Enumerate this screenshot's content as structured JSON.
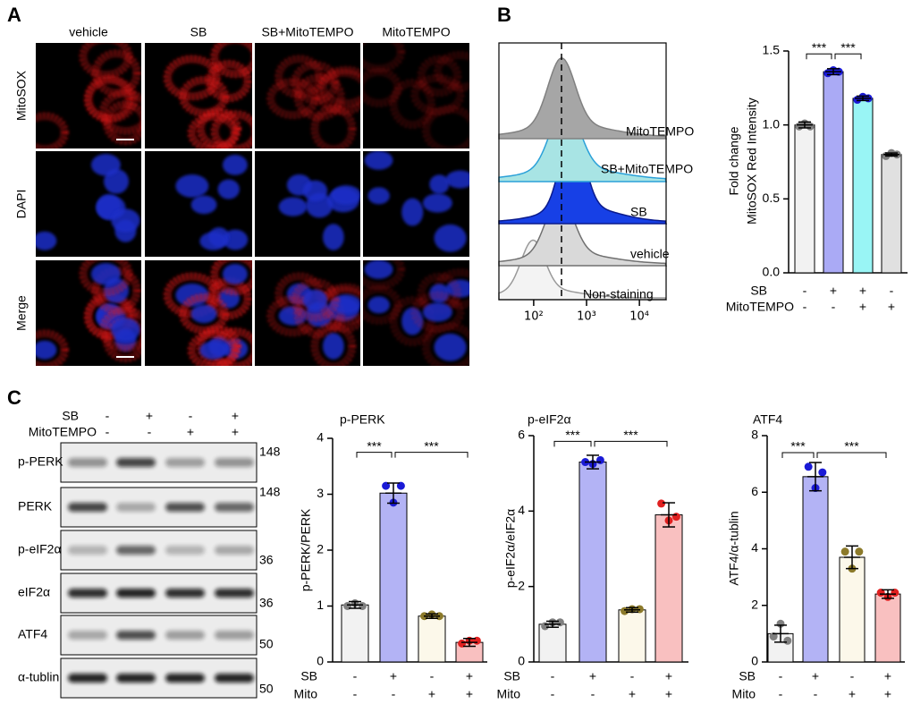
{
  "panel_labels": [
    "A",
    "B",
    "C"
  ],
  "panel_a": {
    "columns": [
      "vehicle",
      "SB",
      "SB+MitoTEMPO",
      "MitoTEMPO"
    ],
    "rows": [
      "MitoSOX",
      "DAPI",
      "Merge"
    ]
  },
  "panel_b_histogram": {
    "samples": [
      {
        "name": "MitoTEMPO",
        "fill": "#a6a6a6",
        "stroke": "#808080"
      },
      {
        "name": "SB+MitoTEMPO",
        "fill": "#a8e4e4",
        "stroke": "#2aa0d8"
      },
      {
        "name": "SB",
        "fill": "#1740e6",
        "stroke": "#0a1a8c"
      },
      {
        "name": "vehicle",
        "fill": "#d9d9d9",
        "stroke": "#707070"
      },
      {
        "name": "Non-staining",
        "fill": "#f3f3f3",
        "stroke": "#999999"
      }
    ],
    "log": true,
    "xlim": [
      22,
      32000
    ],
    "xticks": [
      {
        "value": 100,
        "label": "10²"
      },
      {
        "value": 1000,
        "label": "10³"
      },
      {
        "value": 10000,
        "label": "10⁴"
      }
    ]
  },
  "panel_c_blot": {
    "treatments": [
      {
        "name": "SB",
        "signs": [
          "-",
          "+",
          "-",
          "+"
        ]
      },
      {
        "name": "MitoTEMPO",
        "signs": [
          "-",
          "-",
          "+",
          "+"
        ]
      }
    ],
    "proteins": [
      {
        "name": "p-PERK",
        "marker": 148
      },
      {
        "name": "PERK",
        "marker": 148
      },
      {
        "name": "p-eIF2α",
        "marker": 36
      },
      {
        "name": "eIF2α",
        "marker": 36
      },
      {
        "name": "ATF4",
        "marker": 50
      },
      {
        "name": "α-tublin",
        "marker": 50
      }
    ]
  },
  "chart_data": [
    {
      "type": "bar",
      "ylabel": [
        "Fold change",
        "MitoSOX Red Intensity"
      ],
      "conditions": [
        {
          "name": "SB",
          "signs": [
            "-",
            "+",
            "+",
            "-"
          ]
        },
        {
          "name": "MitoTEMPO",
          "signs": [
            "-",
            "-",
            "+",
            "+"
          ]
        }
      ],
      "values": [
        1.0,
        1.36,
        1.18,
        0.8
      ],
      "errors": [
        0.02,
        0.02,
        0.015,
        0.01
      ],
      "points": [
        [
          0.99,
          1.01,
          0.99
        ],
        [
          1.35,
          1.37,
          1.36
        ],
        [
          1.17,
          1.19,
          1.18
        ],
        [
          0.79,
          0.81,
          0.8
        ]
      ],
      "colors": [
        "#f2f2f2",
        "#aaaaf5",
        "#99f5f5",
        "#e0e0e0"
      ],
      "point_colors": [
        "#808080",
        "#1a1ad6",
        "#1a1ad6",
        "#808080"
      ],
      "ylim": [
        0,
        1.5
      ],
      "yticks": [
        {
          "value": 0,
          "label": "0.0"
        },
        {
          "value": 0.5,
          "label": "0.5"
        },
        {
          "value": 1,
          "label": "1.0"
        },
        {
          "value": 1.5,
          "label": "1.5"
        }
      ],
      "significance": [
        {
          "from": 0,
          "to": 1,
          "label": "***"
        },
        {
          "from": 1,
          "to": 2,
          "label": "***"
        }
      ]
    },
    {
      "type": "bar",
      "title": "p-PERK",
      "ylabel": "p-PERK/PERK",
      "conditions": [
        {
          "name": "SB",
          "signs": [
            "-",
            "+",
            "-",
            "+"
          ]
        },
        {
          "name": "Mito",
          "signs": [
            "-",
            "-",
            "+",
            "+"
          ]
        }
      ],
      "values": [
        1.02,
        3.02,
        0.82,
        0.35
      ],
      "errors": [
        0.06,
        0.18,
        0.04,
        0.07
      ],
      "points": [
        [
          1.0,
          1.05,
          1.0
        ],
        [
          3.15,
          2.85,
          3.15
        ],
        [
          0.82,
          0.85,
          0.82
        ],
        [
          0.33,
          0.38,
          0.38
        ]
      ],
      "colors": [
        "#f2f2f2",
        "#b3b3f5",
        "#fcf8ea",
        "#f9c0c0"
      ],
      "point_colors": [
        "#808080",
        "#1a1ad6",
        "#8c7a2a",
        "#e02020"
      ],
      "ylim": [
        0,
        4
      ],
      "yticks": [
        0,
        1,
        2,
        3,
        4
      ],
      "significance": [
        {
          "from": 0,
          "to": 1,
          "label": "***"
        },
        {
          "from": 1,
          "to": 3,
          "label": "***"
        }
      ]
    },
    {
      "type": "bar",
      "title": "p-eIF2α",
      "ylabel": "p-eIF2α/eIF2α",
      "conditions": [
        {
          "name": "SB",
          "signs": [
            "-",
            "+",
            "-",
            "+"
          ]
        },
        {
          "name": "Mito",
          "signs": [
            "-",
            "-",
            "+",
            "+"
          ]
        }
      ],
      "values": [
        1.0,
        5.3,
        1.38,
        3.9
      ],
      "errors": [
        0.08,
        0.18,
        0.06,
        0.32
      ],
      "points": [
        [
          0.95,
          1.05,
          1.05
        ],
        [
          5.3,
          5.25,
          5.35
        ],
        [
          1.35,
          1.4,
          1.4
        ],
        [
          4.2,
          3.75,
          3.85
        ]
      ],
      "colors": [
        "#f2f2f2",
        "#b3b3f5",
        "#fcf8ea",
        "#f9c0c0"
      ],
      "point_colors": [
        "#808080",
        "#1a1ad6",
        "#8c7a2a",
        "#e02020"
      ],
      "ylim": [
        0,
        6
      ],
      "yticks": [
        0,
        2,
        4,
        6
      ],
      "significance": [
        {
          "from": 0,
          "to": 1,
          "label": "***"
        },
        {
          "from": 1,
          "to": 3,
          "label": "***"
        }
      ]
    },
    {
      "type": "bar",
      "title": "ATF4",
      "ylabel": "ATF4/α-tublin",
      "conditions": [
        {
          "name": "SB",
          "signs": [
            "-",
            "+",
            "-",
            "+"
          ]
        },
        {
          "name": "Mito",
          "signs": [
            "-",
            "-",
            "+",
            "+"
          ]
        }
      ],
      "values": [
        1.0,
        6.55,
        3.7,
        2.4
      ],
      "errors": [
        0.3,
        0.5,
        0.4,
        0.15
      ],
      "points": [
        [
          0.9,
          1.35,
          0.75
        ],
        [
          6.9,
          6.15,
          6.7
        ],
        [
          3.9,
          3.3,
          3.9
        ],
        [
          2.45,
          2.3,
          2.45
        ]
      ],
      "colors": [
        "#f2f2f2",
        "#b3b3f5",
        "#fcf8ea",
        "#f9c0c0"
      ],
      "point_colors": [
        "#808080",
        "#1a1ad6",
        "#8c7a2a",
        "#e02020"
      ],
      "ylim": [
        0,
        8
      ],
      "yticks": [
        0,
        2,
        4,
        6,
        8
      ],
      "significance": [
        {
          "from": 0,
          "to": 1,
          "label": "***"
        },
        {
          "from": 1,
          "to": 3,
          "label": "***"
        }
      ]
    }
  ]
}
